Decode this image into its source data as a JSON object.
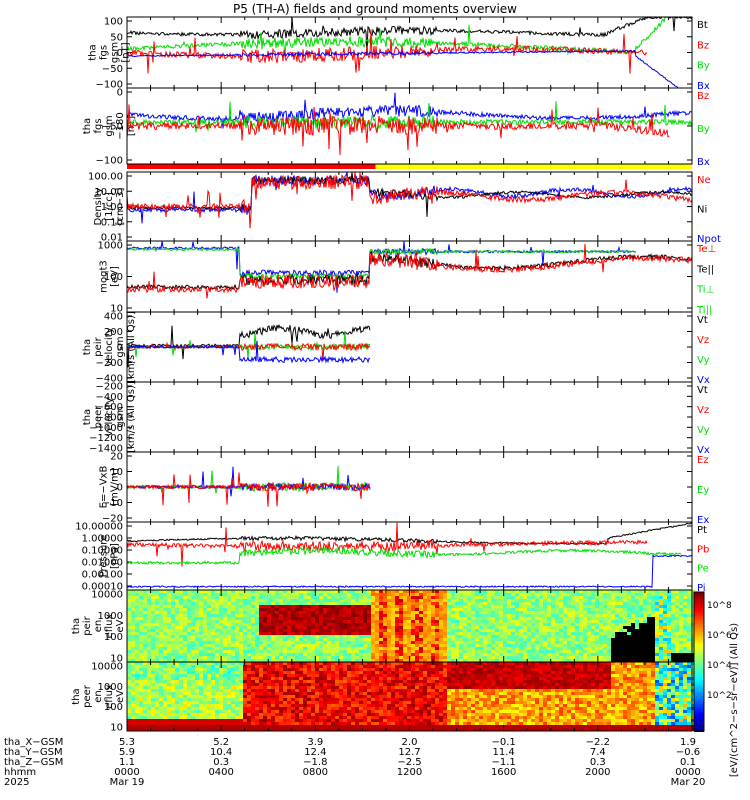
{
  "title": "P5 (TH-A) fields and ground moments overview",
  "colors": {
    "black": "#000000",
    "red": "#ff0000",
    "green": "#00dd00",
    "blue": "#0000ff",
    "yellow": "#ffff00"
  },
  "chart_data": [
    {
      "type": "line",
      "id": "fgs",
      "ylabel": [
        "tha",
        "fgs",
        "gsm",
        "[nT]"
      ],
      "ylim": [
        -100,
        100
      ],
      "yticks": [
        "100",
        "50",
        "0",
        "−50",
        "−100"
      ],
      "legend": [
        "Bt",
        "Bz",
        "By",
        "Bx"
      ]
    },
    {
      "type": "line",
      "id": "fgs_dsl",
      "ylabel": [
        "tha",
        "fgs",
        "gsm",
        "−180",
        "[nT]"
      ],
      "ylim": [
        -130,
        50
      ],
      "yticks": [
        "0",
        "−50",
        "−100"
      ],
      "legend": [
        "Bz",
        "By",
        "Bx"
      ]
    },
    {
      "type": "line",
      "id": "density",
      "ylabel": [
        "Density",
        "[1/cc]",
        "[cm−3]"
      ],
      "scale": "log",
      "yticks": [
        "100.00",
        "10.00",
        "1.00",
        "0.10",
        "0.01"
      ],
      "legend": [
        "Ne",
        "Ni",
        "Npot"
      ]
    },
    {
      "type": "line",
      "id": "temp",
      "ylabel": [
        "moqt3",
        "[eV]"
      ],
      "scale": "log",
      "yticks": [
        "1000",
        "100",
        "10"
      ],
      "legend": [
        "Te⊥",
        "Te||",
        "Ti⊥",
        "Ti||"
      ]
    },
    {
      "type": "line",
      "id": "peir_vel",
      "ylabel": [
        "tha",
        "peir",
        "velocity",
        "gsm",
        "[km/s (All Qs)]"
      ],
      "ylim": [
        -400,
        400
      ],
      "yticks": [
        "400",
        "200",
        "0",
        "−200",
        "−400"
      ],
      "legend": [
        "Vt",
        "Vz",
        "Vy",
        "Vx"
      ]
    },
    {
      "type": "line",
      "id": "peer_vel",
      "ylabel": [
        "tha",
        "peer",
        "velocity",
        "gsm",
        "[km/s (All Qs)]"
      ],
      "ylim": [
        -1400,
        -200
      ],
      "yticks": [
        "−200",
        "−400",
        "−600",
        "−800",
        "−1000",
        "−1200",
        "−1400"
      ],
      "legend": [
        "Vt",
        "Vz",
        "Vy",
        "Vx"
      ]
    },
    {
      "type": "line",
      "id": "efield",
      "ylabel": [
        "E=−VxB",
        "[mV/m]"
      ],
      "ylim": [
        -20,
        20
      ],
      "yticks": [
        "20",
        "10",
        "0",
        "−10",
        "−20"
      ],
      "legend": [
        "Ez",
        "Ey",
        "Ex"
      ]
    },
    {
      "type": "line",
      "id": "pressure",
      "ylabel": [
        "Pressure",
        "[nPa]"
      ],
      "scale": "log",
      "yticks": [
        "10.00000",
        "1.00000",
        "0.10000",
        "0.01000",
        "0.00100",
        "0.00010"
      ],
      "legend": [
        "Pt",
        "Pb",
        "Pe",
        "Pi"
      ]
    },
    {
      "type": "heatmap",
      "id": "peir_en",
      "ylabel": [
        "tha",
        "peir",
        "en",
        "eflux",
        "eV",
        "(cm^2−s−",
        "sr−eV)"
      ],
      "yticks": [
        "10000",
        "1000",
        "100",
        "10"
      ]
    },
    {
      "type": "heatmap",
      "id": "peer_en",
      "ylabel": [
        "tha",
        "peer",
        "en",
        "eflux",
        "eV",
        "(cm^2−s−",
        "sr−eV)"
      ],
      "yticks": [
        "10000",
        "1000",
        "100",
        "10"
      ]
    }
  ],
  "colorbar": {
    "label": "[eV/(cm^2−s−sr−eV)] (All Qs)",
    "ticks": [
      "10^8",
      "10^6",
      "10^4",
      "10^2"
    ]
  },
  "xaxis": {
    "row_labels": [
      "tha_X−GSM",
      "tha_Y−GSM",
      "tha_Z−GSM",
      "hhmm",
      "2025"
    ],
    "columns": [
      {
        "x": "5.3",
        "y": "5.9",
        "z": "1.1",
        "hhmm": "0000",
        "date": "Mar 19"
      },
      {
        "x": "5.2",
        "y": "10.4",
        "z": "0.3",
        "hhmm": "0400",
        "date": ""
      },
      {
        "x": "3.9",
        "y": "12.4",
        "z": "−1.8",
        "hhmm": "0800",
        "date": ""
      },
      {
        "x": "2.0",
        "y": "12.7",
        "z": "−2.5",
        "hhmm": "1200",
        "date": ""
      },
      {
        "x": "−0.1",
        "y": "11.4",
        "z": "−1.1",
        "hhmm": "1600",
        "date": ""
      },
      {
        "x": "−2.2",
        "y": "7.4",
        "z": "0.3",
        "hhmm": "2000",
        "date": ""
      },
      {
        "x": "1.9",
        "y": "−0.6",
        "z": "0.1",
        "hhmm": "0000",
        "date": "Mar 20"
      }
    ]
  }
}
